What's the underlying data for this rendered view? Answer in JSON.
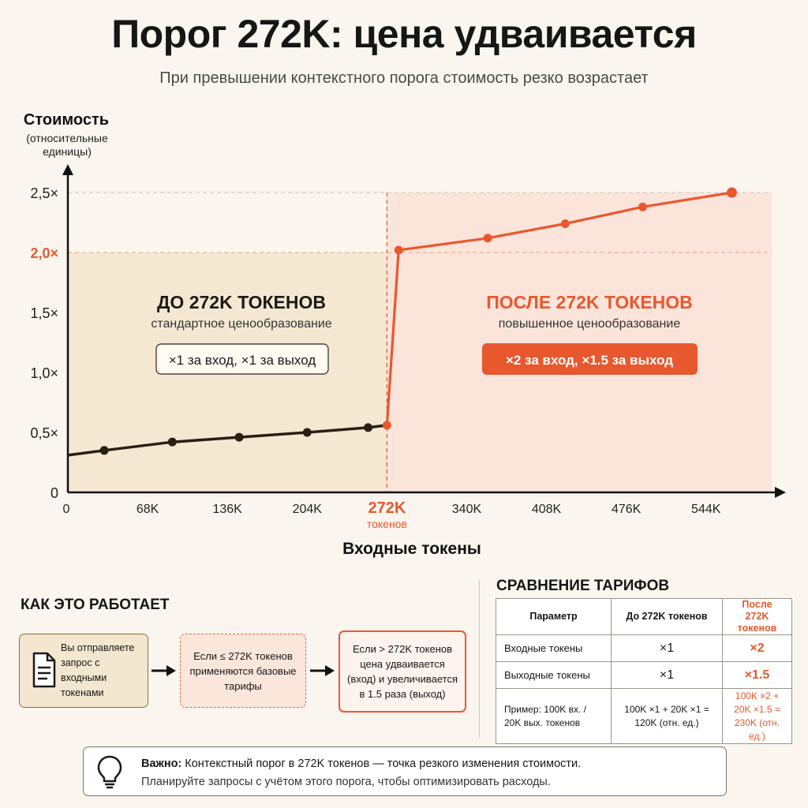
{
  "header": {
    "title": "Порог 272K: цена удваивается",
    "subtitle": "При превышении контекстного порога стоимость резко возрастает"
  },
  "chart_data": {
    "type": "line",
    "ylabel": "Стоимость",
    "ylabel_sub": "(относительные единицы)",
    "xlabel": "Входные токены",
    "xlim": [
      0,
      600
    ],
    "ylim": [
      0,
      2.5
    ],
    "x_ticks": [
      {
        "value": 0,
        "label": "0"
      },
      {
        "value": 68,
        "label": "68K"
      },
      {
        "value": 136,
        "label": "136K"
      },
      {
        "value": 204,
        "label": "204K"
      },
      {
        "value": 272,
        "label": "272K",
        "sublabel": "токенов",
        "highlight": true
      },
      {
        "value": 340,
        "label": "340K"
      },
      {
        "value": 408,
        "label": "408K"
      },
      {
        "value": 476,
        "label": "476K"
      },
      {
        "value": 544,
        "label": "544K"
      }
    ],
    "y_ticks": [
      {
        "value": 0,
        "label": "0"
      },
      {
        "value": 0.5,
        "label": "0,5×"
      },
      {
        "value": 1.0,
        "label": "1,0×"
      },
      {
        "value": 1.5,
        "label": "1,5×"
      },
      {
        "value": 2.0,
        "label": "2,0×",
        "highlight": true
      },
      {
        "value": 2.5,
        "label": "2,5×"
      }
    ],
    "threshold_x": 272,
    "series": [
      {
        "segment": "before",
        "color": "#2a1f14",
        "points": [
          [
            0,
            0.31
          ],
          [
            31,
            0.35
          ],
          [
            89,
            0.42
          ],
          [
            146,
            0.46
          ],
          [
            204,
            0.5
          ],
          [
            256,
            0.54
          ],
          [
            272,
            0.56
          ]
        ]
      },
      {
        "segment": "after",
        "color": "#e8582e",
        "points": [
          [
            272,
            0.56
          ],
          [
            282,
            2.02
          ],
          [
            358,
            2.12
          ],
          [
            424,
            2.24
          ],
          [
            490,
            2.38
          ],
          [
            566,
            2.5
          ]
        ]
      }
    ],
    "regions": [
      {
        "side": "before",
        "title": "ДО 272K ТОКЕНОВ",
        "subtitle": "стандартное ценообразование",
        "badge": "×1 за вход, ×1 за выход",
        "fill": "#f4e8d3"
      },
      {
        "side": "after",
        "title": "ПОСЛЕ 272K ТОКЕНОВ",
        "subtitle": "повышенное ценообразование",
        "badge": "×2 за вход, ×1.5 за выход",
        "fill": "#fbe4da"
      }
    ]
  },
  "how_it_works": {
    "title": "КАК ЭТО РАБОТАЕТ",
    "steps": [
      "Вы отправляете запрос с входными токенами",
      "Если ≤ 272K токенов применяются базовые тарифы",
      "Если > 272K токенов цена удваивается (вход) и увеличивается в 1.5 раза (выход)"
    ]
  },
  "comparison": {
    "title": "СРАВНЕНИЕ ТАРИФОВ",
    "headers": [
      "Параметр",
      "До 272K токенов",
      "После 272K токенов"
    ],
    "rows": [
      [
        "Входные токены",
        "×1",
        "×2"
      ],
      [
        "Выходные токены",
        "×1",
        "×1.5"
      ],
      [
        "Пример: 100K вх. / 20K вых. токенов",
        "100K ×1 + 20K ×1 = 120K (отн. ед.)",
        "100K ×2 + 20K ×1.5 = 230K (отн. ед.)"
      ]
    ]
  },
  "note": {
    "label": "Важно:",
    "line1": "Контекстный порог в 272K токенов — точка резкого изменения стоимости.",
    "line2": "Планируйте запросы с учётом этого порога, чтобы оптимизировать расходы."
  },
  "colors": {
    "accent": "#e8582e",
    "dark": "#2a1f14"
  }
}
